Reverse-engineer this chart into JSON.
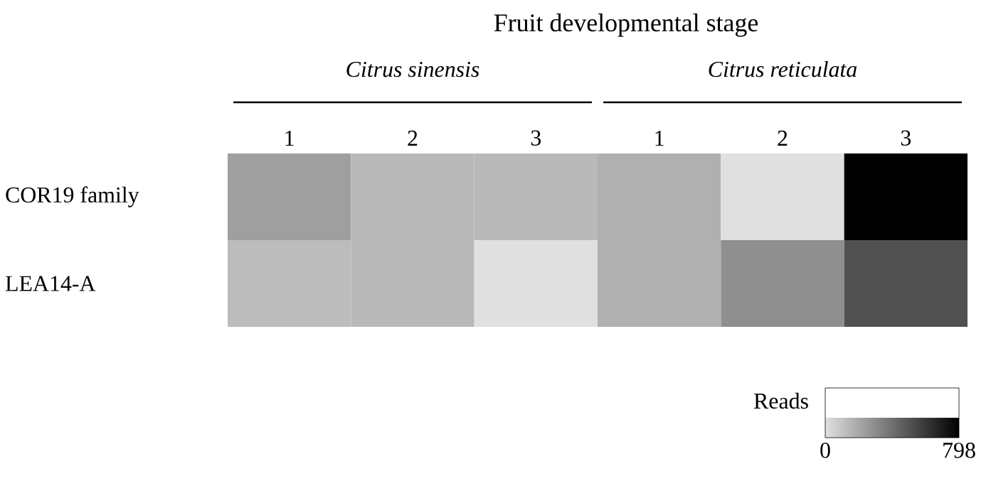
{
  "chart_data": {
    "type": "heatmap",
    "title": "Fruit developmental stage",
    "categories": [
      "1",
      "2",
      "3",
      "1",
      "2",
      "3"
    ],
    "y_categories": [
      "COR19 family",
      "LEA14-A"
    ],
    "cells": [
      [
        230,
        140,
        140,
        170,
        0,
        798
      ],
      [
        130,
        140,
        0,
        170,
        290,
        510
      ]
    ],
    "clim": [
      0,
      798
    ],
    "cticks": [
      0,
      798
    ],
    "clabel": "Reads",
    "annotations": [
      "Citrus sinensis",
      "Citrus reticulata"
    ]
  }
}
